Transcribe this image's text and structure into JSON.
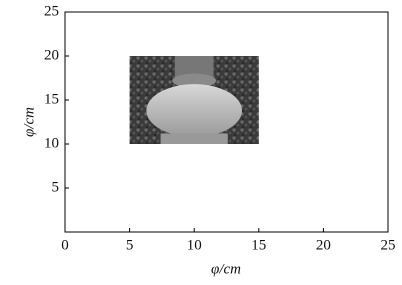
{
  "chart_data": {
    "type": "image",
    "xlabel": "φ/cm",
    "ylabel": "φ/cm",
    "xlim": [
      0,
      25
    ],
    "ylim": [
      0,
      25
    ],
    "xticks": [
      0,
      5,
      10,
      15,
      20,
      25
    ],
    "yticks": [
      5,
      10,
      15,
      20,
      25
    ],
    "extent": {
      "x": [
        5,
        15
      ],
      "y": [
        10,
        20
      ]
    }
  }
}
